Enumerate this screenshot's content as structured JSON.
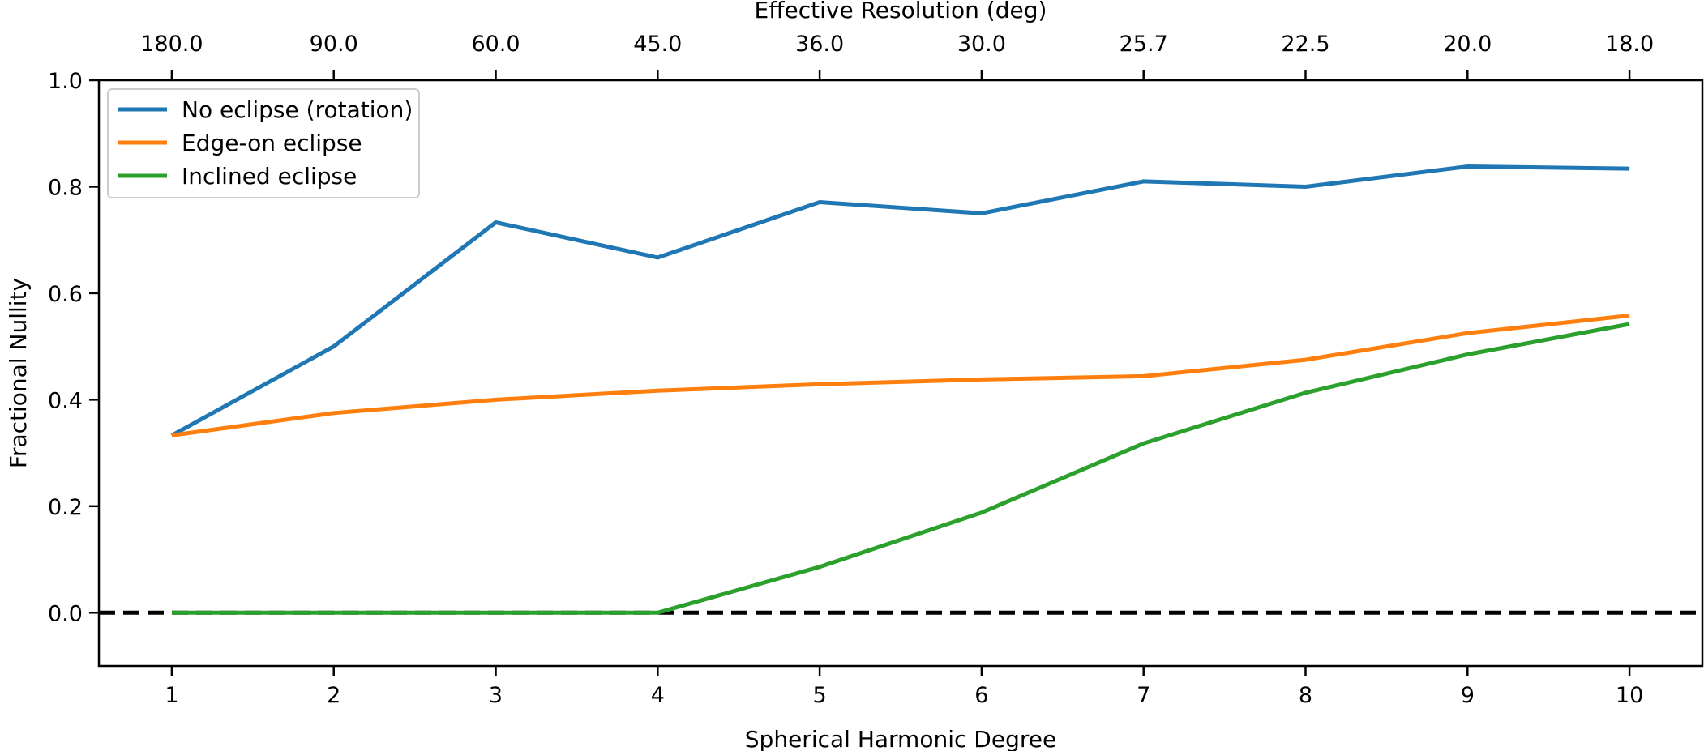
{
  "chart_data": {
    "type": "line",
    "xlabel": "Spherical Harmonic Degree",
    "ylabel": "Fractional Nullity",
    "top_xlabel": "Effective Resolution (deg)",
    "x": [
      1,
      2,
      3,
      4,
      5,
      6,
      7,
      8,
      9,
      10
    ],
    "x_tick_labels": [
      "1",
      "2",
      "3",
      "4",
      "5",
      "6",
      "7",
      "8",
      "9",
      "10"
    ],
    "top_x_tick_labels": [
      "180.0",
      "90.0",
      "60.0",
      "45.0",
      "36.0",
      "30.0",
      "25.7",
      "22.5",
      "20.0",
      "18.0"
    ],
    "xlim": [
      0.55,
      10.45
    ],
    "ylim": [
      -0.1,
      1.0
    ],
    "y_ticks": [
      0.0,
      0.2,
      0.4,
      0.6,
      0.8,
      1.0
    ],
    "y_tick_labels": [
      "0.0",
      "0.2",
      "0.4",
      "0.6",
      "0.8",
      "1.0"
    ],
    "grid": false,
    "legend_position": "top-left",
    "reference_line": {
      "y": 0.0,
      "style": "dashed",
      "color": "#000000"
    },
    "series": [
      {
        "name": "No eclipse (rotation)",
        "color": "#1f77b4",
        "values": [
          0.333,
          0.5,
          0.733,
          0.667,
          0.771,
          0.75,
          0.81,
          0.8,
          0.838,
          0.834
        ]
      },
      {
        "name": "Edge-on eclipse",
        "color": "#ff7f0e",
        "values": [
          0.333,
          0.375,
          0.4,
          0.417,
          0.429,
          0.438,
          0.444,
          0.475,
          0.525,
          0.558
        ]
      },
      {
        "name": "Inclined eclipse",
        "color": "#2ca02c",
        "values": [
          0.0,
          0.0,
          0.0,
          0.0,
          0.086,
          0.188,
          0.318,
          0.413,
          0.485,
          0.542
        ]
      }
    ]
  }
}
